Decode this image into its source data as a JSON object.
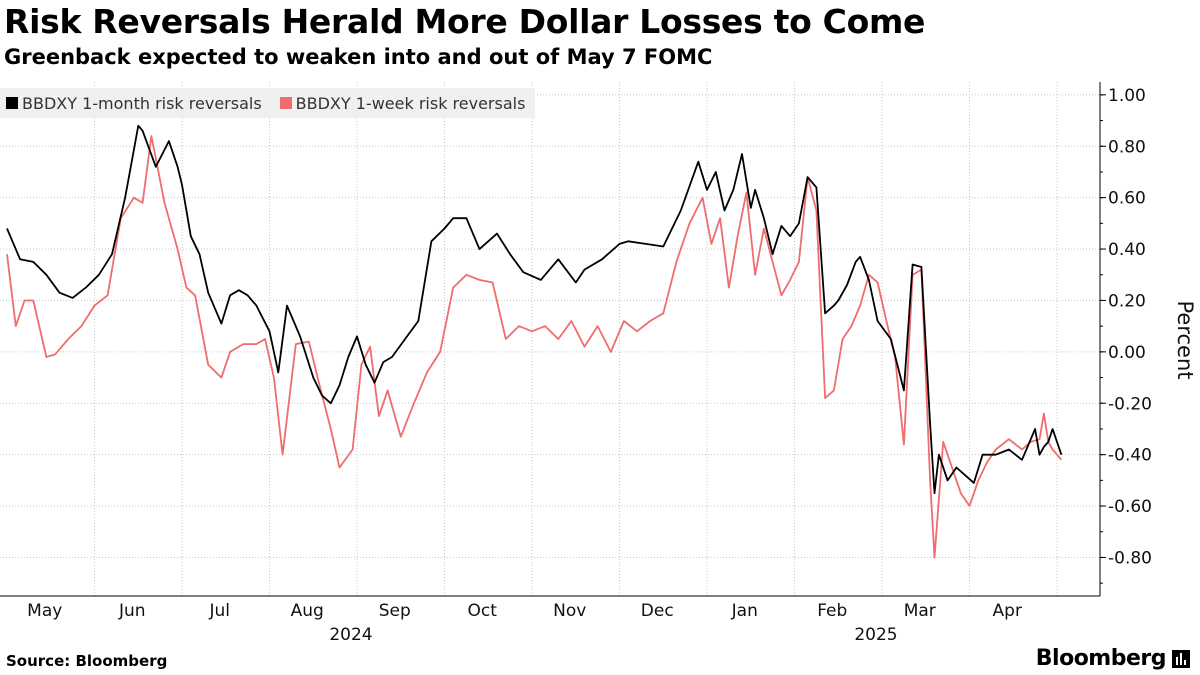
{
  "title": "Risk Reversals Herald More Dollar Losses to Come",
  "subtitle": "Greenback expected to weaken into and out of May 7 FOMC",
  "footer": {
    "source": "Source: Bloomberg",
    "brand": "Bloomberg"
  },
  "colors": {
    "series_1m": "#000000",
    "series_1w": "#ef6d6d",
    "grid": "#c8c8c8",
    "legend_bg": "#f0f0f0"
  },
  "chart_data": {
    "type": "line",
    "title": "Risk Reversals Herald More Dollar Losses to Come",
    "ylabel": "Percent",
    "xlabel": "",
    "ylim": [
      -0.95,
      1.05
    ],
    "yticks": [
      1.0,
      0.8,
      0.6,
      0.4,
      0.2,
      0.0,
      -0.2,
      -0.4,
      -0.6,
      -0.8
    ],
    "ytick_labels": [
      "1.00",
      "0.80",
      "0.60",
      "0.40",
      "0.20",
      "0.00",
      "-0.20",
      "-0.40",
      "-0.60",
      "-0.80"
    ],
    "x_months": [
      "May",
      "Jun",
      "Jul",
      "Aug",
      "Sep",
      "Oct",
      "Nov",
      "Dec",
      "Jan",
      "Feb",
      "Mar",
      "Apr"
    ],
    "x_years": [
      {
        "label": "2024",
        "month_index": 3.5
      },
      {
        "label": "2025",
        "month_index": 9.5
      }
    ],
    "x_range": [
      0,
      12.3
    ],
    "series": [
      {
        "name": "BBDXY 1-month risk reversals",
        "x": [
          0,
          0.15,
          0.3,
          0.45,
          0.6,
          0.75,
          0.9,
          1.05,
          1.2,
          1.35,
          1.5,
          1.55,
          1.7,
          1.85,
          1.95,
          2.0,
          2.1,
          2.2,
          2.3,
          2.45,
          2.55,
          2.65,
          2.75,
          2.85,
          3.0,
          3.1,
          3.2,
          3.35,
          3.5,
          3.6,
          3.7,
          3.8,
          3.9,
          4.0,
          4.1,
          4.2,
          4.3,
          4.4,
          4.55,
          4.7,
          4.85,
          5.0,
          5.1,
          5.25,
          5.4,
          5.6,
          5.75,
          5.9,
          6.1,
          6.3,
          6.5,
          6.6,
          6.8,
          7.0,
          7.1,
          7.3,
          7.5,
          7.7,
          7.9,
          8.0,
          8.1,
          8.2,
          8.3,
          8.4,
          8.5,
          8.55,
          8.65,
          8.75,
          8.85,
          8.95,
          9.05,
          9.15,
          9.25,
          9.35,
          9.45,
          9.5,
          9.6,
          9.7,
          9.75,
          9.85,
          9.95,
          10.1,
          10.25,
          10.35,
          10.45,
          10.55,
          10.6,
          10.65,
          10.75,
          10.85,
          10.95,
          11.05,
          11.15,
          11.3,
          11.45,
          11.6,
          11.75,
          11.8,
          11.85,
          11.9,
          11.95,
          12.05
        ],
        "values": [
          0.48,
          0.36,
          0.35,
          0.3,
          0.23,
          0.21,
          0.25,
          0.3,
          0.38,
          0.6,
          0.88,
          0.86,
          0.72,
          0.82,
          0.72,
          0.65,
          0.45,
          0.38,
          0.23,
          0.11,
          0.22,
          0.24,
          0.22,
          0.18,
          0.08,
          -0.08,
          0.18,
          0.06,
          -0.1,
          -0.17,
          -0.2,
          -0.13,
          -0.02,
          0.06,
          -0.05,
          -0.12,
          -0.04,
          -0.02,
          0.05,
          0.12,
          0.43,
          0.48,
          0.52,
          0.52,
          0.4,
          0.46,
          0.38,
          0.31,
          0.28,
          0.36,
          0.27,
          0.32,
          0.36,
          0.42,
          0.43,
          0.42,
          0.41,
          0.55,
          0.74,
          0.63,
          0.7,
          0.55,
          0.63,
          0.77,
          0.56,
          0.63,
          0.52,
          0.38,
          0.49,
          0.45,
          0.5,
          0.68,
          0.64,
          0.15,
          0.18,
          0.2,
          0.26,
          0.35,
          0.37,
          0.28,
          0.12,
          0.05,
          -0.15,
          0.34,
          0.33,
          -0.28,
          -0.55,
          -0.4,
          -0.5,
          -0.45,
          -0.48,
          -0.51,
          -0.4,
          -0.4,
          -0.38,
          -0.42,
          -0.3,
          -0.4,
          -0.37,
          -0.35,
          -0.3,
          -0.4
        ]
      },
      {
        "name": "BBDXY 1-week risk reversals",
        "x": [
          0,
          0.1,
          0.2,
          0.3,
          0.45,
          0.55,
          0.7,
          0.85,
          1.0,
          1.15,
          1.3,
          1.45,
          1.55,
          1.65,
          1.8,
          1.95,
          2.05,
          2.15,
          2.3,
          2.45,
          2.55,
          2.7,
          2.85,
          2.95,
          3.05,
          3.15,
          3.3,
          3.45,
          3.55,
          3.7,
          3.8,
          3.95,
          4.05,
          4.15,
          4.25,
          4.35,
          4.5,
          4.65,
          4.8,
          4.95,
          5.1,
          5.25,
          5.4,
          5.55,
          5.7,
          5.85,
          6.0,
          6.15,
          6.3,
          6.45,
          6.6,
          6.75,
          6.9,
          7.05,
          7.2,
          7.35,
          7.5,
          7.65,
          7.8,
          7.95,
          8.05,
          8.15,
          8.25,
          8.35,
          8.45,
          8.55,
          8.65,
          8.75,
          8.85,
          8.95,
          9.05,
          9.15,
          9.25,
          9.35,
          9.45,
          9.55,
          9.65,
          9.75,
          9.85,
          9.95,
          10.05,
          10.15,
          10.25,
          10.35,
          10.45,
          10.55,
          10.6,
          10.7,
          10.8,
          10.9,
          11.0,
          11.1,
          11.2,
          11.3,
          11.45,
          11.6,
          11.7,
          11.8,
          11.85,
          11.9,
          11.95,
          12.05
        ],
        "values": [
          0.38,
          0.1,
          0.2,
          0.2,
          -0.02,
          -0.01,
          0.05,
          0.1,
          0.18,
          0.22,
          0.52,
          0.6,
          0.58,
          0.84,
          0.58,
          0.4,
          0.25,
          0.22,
          -0.05,
          -0.1,
          0.0,
          0.03,
          0.03,
          0.05,
          -0.1,
          -0.4,
          0.03,
          0.04,
          -0.1,
          -0.3,
          -0.45,
          -0.38,
          -0.05,
          0.02,
          -0.25,
          -0.15,
          -0.33,
          -0.2,
          -0.08,
          0.0,
          0.25,
          0.3,
          0.28,
          0.27,
          0.05,
          0.1,
          0.08,
          0.1,
          0.05,
          0.12,
          0.02,
          0.1,
          0.0,
          0.12,
          0.08,
          0.12,
          0.15,
          0.35,
          0.5,
          0.6,
          0.42,
          0.52,
          0.25,
          0.45,
          0.62,
          0.3,
          0.48,
          0.35,
          0.22,
          0.28,
          0.35,
          0.68,
          0.55,
          -0.18,
          -0.15,
          0.05,
          0.1,
          0.18,
          0.3,
          0.27,
          0.12,
          -0.02,
          -0.36,
          0.3,
          0.32,
          -0.5,
          -0.8,
          -0.35,
          -0.45,
          -0.55,
          -0.6,
          -0.5,
          -0.43,
          -0.38,
          -0.34,
          -0.38,
          -0.35,
          -0.34,
          -0.24,
          -0.35,
          -0.38,
          -0.42
        ]
      }
    ]
  }
}
